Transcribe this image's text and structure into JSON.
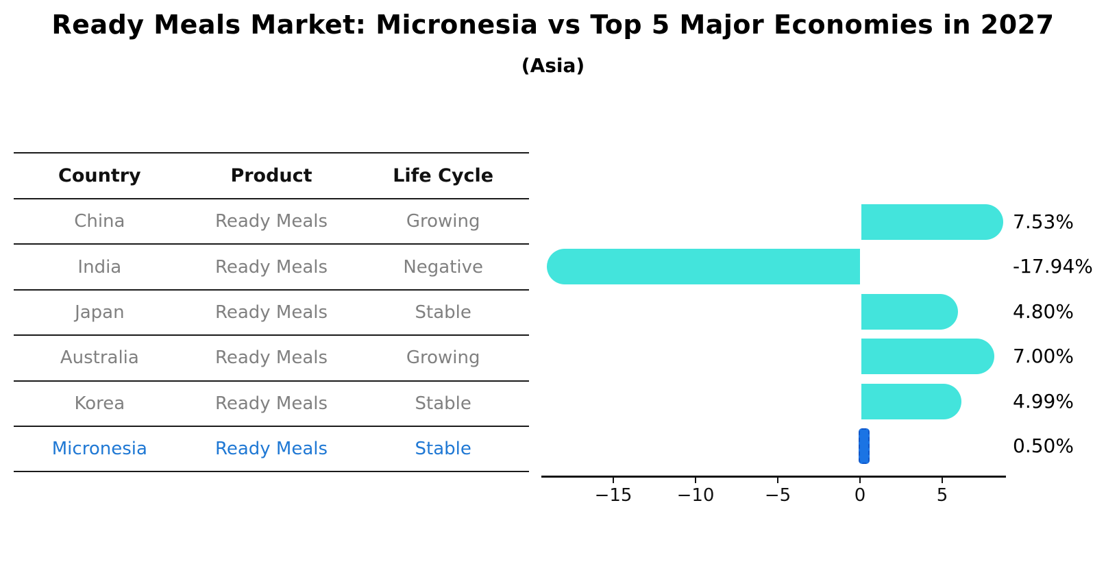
{
  "title": "Ready Meals Market: Micronesia vs Top 5 Major Economies in 2027",
  "subtitle": "(Asia)",
  "table": {
    "headers": [
      "Country",
      "Product",
      "Life Cycle"
    ],
    "rows": [
      {
        "country": "China",
        "product": "Ready Meals",
        "life_cycle": "Growing",
        "highlight": false
      },
      {
        "country": "India",
        "product": "Ready Meals",
        "life_cycle": "Negative",
        "highlight": false
      },
      {
        "country": "Japan",
        "product": "Ready Meals",
        "life_cycle": "Stable",
        "highlight": false
      },
      {
        "country": "Australia",
        "product": "Ready Meals",
        "life_cycle": "Growing",
        "highlight": false
      },
      {
        "country": "Korea",
        "product": "Ready Meals",
        "life_cycle": "Stable",
        "highlight": false
      },
      {
        "country": "Micronesia",
        "product": "Ready Meals",
        "life_cycle": "Stable",
        "highlight": true
      }
    ]
  },
  "chart_data": {
    "type": "bar",
    "orientation": "horizontal",
    "title": "Ready Meals Market: Micronesia vs Top 5 Major Economies in 2027",
    "subtitle": "(Asia)",
    "categories": [
      "China",
      "India",
      "Japan",
      "Australia",
      "Korea",
      "Micronesia"
    ],
    "values": [
      7.53,
      -17.94,
      4.8,
      7.0,
      4.99,
      0.5
    ],
    "value_labels": [
      "7.53%",
      "-17.94%",
      "4.80%",
      "7.00%",
      "4.99%",
      "0.50%"
    ],
    "highlight_index": 5,
    "xlabel": "",
    "ylabel": "",
    "xlim": [
      -19.4,
      8.9
    ],
    "grid": false,
    "legend": "none",
    "x_ticks": [
      {
        "value": -15,
        "label": "−15"
      },
      {
        "value": -10,
        "label": "−10"
      },
      {
        "value": -5,
        "label": "−5"
      },
      {
        "value": 0,
        "label": "0"
      },
      {
        "value": 5,
        "label": "5"
      }
    ],
    "colors": {
      "bar": "#43e4dc",
      "highlight_bar": "#1b74e4",
      "highlight_border": "#1257c8",
      "axis": "#111111",
      "value_label_text": "#000000"
    }
  },
  "colors": {
    "title_text": "#000000",
    "header_text": "#111111",
    "cell_text": "#808080",
    "highlight_text": "#1f78d4",
    "table_line": "#1a1a1a",
    "background": "#ffffff"
  }
}
